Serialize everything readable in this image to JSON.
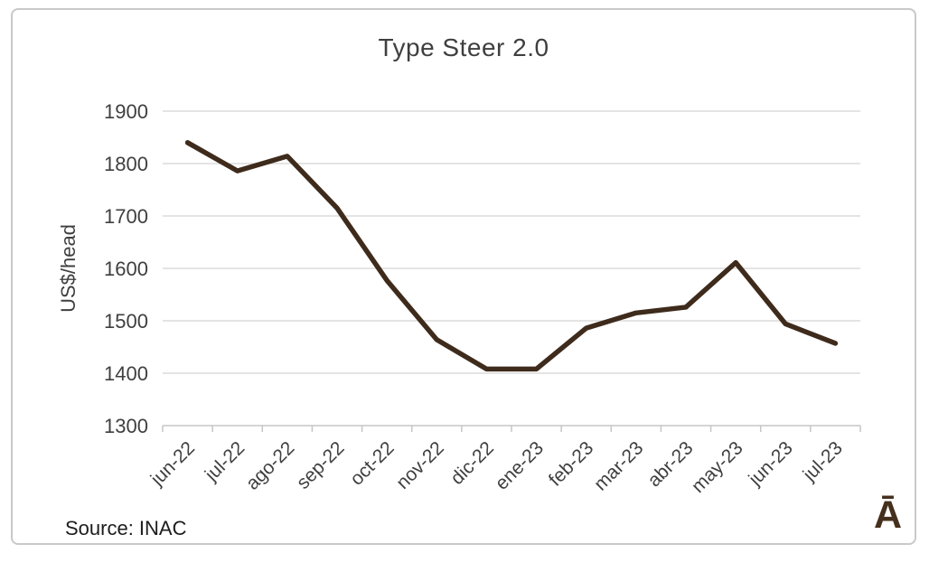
{
  "chart_data": {
    "type": "line",
    "title": "Type Steer 2.0",
    "ylabel": "US$/head",
    "xlabel": "",
    "source": "Source: INAC",
    "logo": "Ā",
    "categories": [
      "jun-22",
      "jul-22",
      "ago-22",
      "sep-22",
      "oct-22",
      "nov-22",
      "dic-22",
      "ene-23",
      "feb-23",
      "mar-23",
      "abr-23",
      "may-23",
      "jun-23",
      "jul-23"
    ],
    "values": [
      1840,
      1786,
      1814,
      1715,
      1577,
      1464,
      1408,
      1408,
      1486,
      1515,
      1526,
      1611,
      1494,
      1457
    ],
    "ylim": [
      1300,
      1900
    ],
    "y_tick_step": 100,
    "y_tick_labels": [
      "1300",
      "1400",
      "1500",
      "1600",
      "1700",
      "1800",
      "1900"
    ],
    "grid": true,
    "legend": false,
    "line_color": "#3e2b1c",
    "gridline_color": "#dcdcdc",
    "axis_color": "#c6c6c6",
    "tick_text_color": "#3f3f3f",
    "logo_color": "#44301c"
  }
}
